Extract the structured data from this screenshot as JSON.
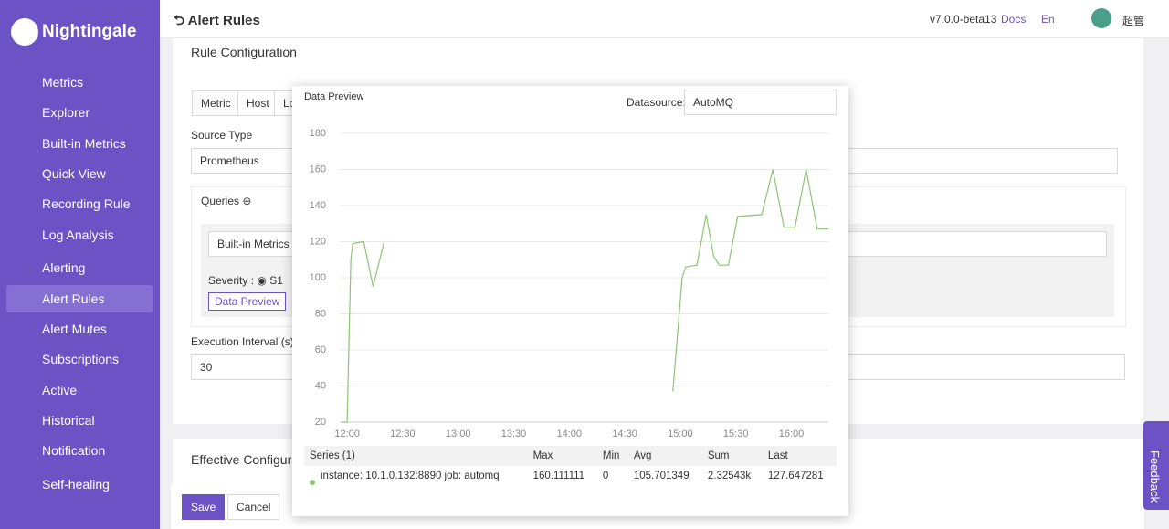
{
  "sidebar": {
    "logo": "Nightingale",
    "menu": [
      "Metrics",
      "Explorer",
      "Built-in Metrics",
      "Quick View",
      "Recording Rule",
      "Log Analysis",
      "Alerting",
      "Alert Rules",
      "Alert Mutes",
      "Subscriptions",
      "Active",
      "Historical",
      "Notification",
      "Self-healing"
    ]
  },
  "header": {
    "title": "Alert Rules",
    "version": "v7.0.0-beta13",
    "docs": "Docs",
    "lang": "En",
    "user": "超管"
  },
  "form": {
    "section": "Rule Configuration",
    "tabs": [
      "Metric",
      "Host",
      "Lo"
    ],
    "source_type_label": "Source Type",
    "source_type": "Prometheus",
    "queries_label": "Queries",
    "query_datasource": "Built-in Metrics",
    "severity_label": "Severity",
    "severity_sep": ":",
    "severity_option": "S1",
    "preview_button": "Data Preview",
    "interval_label": "Execution Interval (s)",
    "interval": "30",
    "effective": "Effective Configurati"
  },
  "footer": {
    "save": "Save",
    "cancel": "Cancel"
  },
  "feedback": "Feedback",
  "preview": {
    "title": "Data Preview",
    "datasource_label": "Datasource:",
    "datasource": "AutoMQ",
    "table": {
      "headers": [
        "Series (1)",
        "Max",
        "Min",
        "Avg",
        "Sum",
        "Last"
      ],
      "rows": [
        [
          "instance: 10.1.0.132:8890 job: automq",
          "160.111111",
          "0",
          "105.701349",
          "2.32543k",
          "127.647281"
        ]
      ]
    }
  },
  "chart_data": {
    "type": "line",
    "xlim": [
      "11:56",
      "16:20"
    ],
    "xticks": [
      "12:00",
      "12:30",
      "13:00",
      "13:30",
      "14:00",
      "14:30",
      "15:00",
      "15:30",
      "16:00"
    ],
    "ylim": [
      20,
      180
    ],
    "yticks": [
      20,
      40,
      60,
      80,
      100,
      120,
      140,
      160,
      180
    ],
    "grid": true,
    "x": [
      "11:57",
      "12:00",
      "12:02",
      "12:03",
      "12:09",
      "12:14",
      "12:20",
      "12:30",
      "14:56",
      "15:01",
      "15:03",
      "15:09",
      "15:14",
      "15:18",
      "15:21",
      "15:26",
      "15:31",
      "15:44",
      "15:50",
      "15:56",
      "16:02",
      "16:08",
      "16:14",
      "16:20"
    ],
    "series": [
      {
        "name": "instance: 10.1.0.132:8890 job: automq",
        "color": "#8cc474",
        "values": [
          20,
          20,
          110,
          119,
          120,
          95,
          120,
          null,
          37,
          100,
          106,
          107,
          135,
          112,
          107,
          107,
          134,
          135,
          160,
          128,
          128,
          160,
          127,
          127
        ]
      }
    ]
  }
}
